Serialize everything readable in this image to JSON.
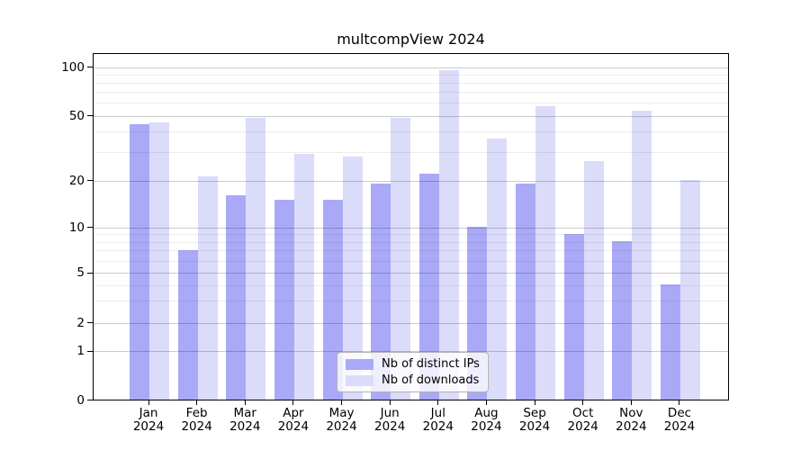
{
  "chart_data": {
    "type": "bar",
    "title": "multcompView 2024",
    "categories": [
      "Jan",
      "Feb",
      "Mar",
      "Apr",
      "May",
      "Jun",
      "Jul",
      "Aug",
      "Sep",
      "Oct",
      "Nov",
      "Dec"
    ],
    "year_label": "2024",
    "series": [
      {
        "name": "Nb of distinct IPs",
        "color": "#a9a9f8",
        "values": [
          44,
          7,
          16,
          15,
          15,
          19,
          22,
          10,
          19,
          9,
          8,
          4
        ]
      },
      {
        "name": "Nb of downloads",
        "color": "#dbdbfa",
        "values": [
          45,
          21,
          48,
          29,
          28,
          48,
          95,
          36,
          57,
          26,
          53,
          20
        ]
      }
    ],
    "yticks": [
      0,
      1,
      2,
      5,
      10,
      20,
      50,
      100
    ],
    "minor_gridlines": [
      3,
      4,
      6,
      7,
      8,
      9,
      30,
      40,
      60,
      70,
      80,
      90
    ],
    "yscale": "log1p",
    "ylim": [
      0,
      120
    ],
    "xlabel": "",
    "ylabel": "",
    "grid": true,
    "legend_position": "bottom-center",
    "colors": {
      "spine": "#000000",
      "major_grid": "#cccccc",
      "minor_grid": "#ebebeb",
      "background": "#ffffff"
    }
  }
}
